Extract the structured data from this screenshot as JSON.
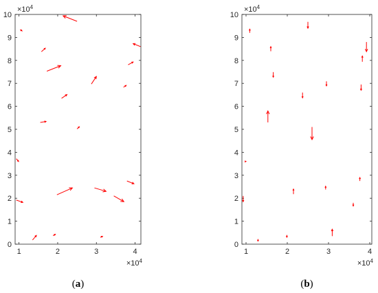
{
  "chart_data": [
    {
      "type": "quiver",
      "caption_letter": "a",
      "xlim": [
        0.9,
        4.15
      ],
      "ylim": [
        0,
        10
      ],
      "xticks": [
        1,
        2,
        3,
        4
      ],
      "yticks": [
        0,
        1,
        2,
        3,
        4,
        5,
        6,
        7,
        8,
        9,
        10
      ],
      "x_multiplier": "×10",
      "x_exponent": "4",
      "y_multiplier": "×10",
      "y_exponent": "4",
      "color": "#ff0000",
      "vectors": [
        {
          "x": 1.35,
          "y": 0.18,
          "u": 0.1,
          "v": 0.2
        },
        {
          "x": 1.88,
          "y": 0.37,
          "u": 0.06,
          "v": 0.06
        },
        {
          "x": 1.09,
          "y": 9.27,
          "u": -0.05,
          "v": 0.06
        },
        {
          "x": 2.5,
          "y": 9.7,
          "u": -0.36,
          "v": 0.24
        },
        {
          "x": 1.58,
          "y": 8.38,
          "u": 0.1,
          "v": 0.15
        },
        {
          "x": 1.72,
          "y": 7.53,
          "u": 0.36,
          "v": 0.24
        },
        {
          "x": 1.55,
          "y": 5.3,
          "u": 0.15,
          "v": 0.04
        },
        {
          "x": 2.1,
          "y": 6.35,
          "u": 0.14,
          "v": 0.16
        },
        {
          "x": 2.5,
          "y": 5.02,
          "u": 0.06,
          "v": 0.09
        },
        {
          "x": 2.87,
          "y": 6.97,
          "u": 0.13,
          "v": 0.33
        },
        {
          "x": 3.7,
          "y": 6.83,
          "u": 0.07,
          "v": 0.08
        },
        {
          "x": 3.82,
          "y": 7.81,
          "u": 0.13,
          "v": 0.12
        },
        {
          "x": 4.14,
          "y": 8.6,
          "u": -0.19,
          "v": 0.13
        },
        {
          "x": 0.93,
          "y": 3.72,
          "u": 0.06,
          "v": -0.12
        },
        {
          "x": 0.93,
          "y": 1.92,
          "u": 0.17,
          "v": -0.1
        },
        {
          "x": 1.98,
          "y": 2.15,
          "u": 0.4,
          "v": 0.3
        },
        {
          "x": 2.95,
          "y": 2.45,
          "u": 0.3,
          "v": -0.15
        },
        {
          "x": 3.45,
          "y": 2.1,
          "u": 0.26,
          "v": -0.25
        },
        {
          "x": 3.79,
          "y": 2.75,
          "u": 0.18,
          "v": -0.12
        },
        {
          "x": 3.1,
          "y": 0.3,
          "u": 0.06,
          "v": 0.04
        }
      ]
    },
    {
      "type": "quiver",
      "caption_letter": "b",
      "xlim": [
        0.9,
        4.05
      ],
      "ylim": [
        0,
        10
      ],
      "xticks": [
        1,
        2,
        3,
        4
      ],
      "yticks": [
        0,
        1,
        2,
        3,
        4,
        5,
        6,
        7,
        8,
        9,
        10
      ],
      "x_multiplier": "×10",
      "x_exponent": "4",
      "y_multiplier": "×10",
      "y_exponent": "4",
      "color": "#ff0000",
      "vectors": [
        {
          "x": 1.09,
          "y": 9.2,
          "u": 0.0,
          "v": 0.16
        },
        {
          "x": 2.5,
          "y": 9.68,
          "u": 0.0,
          "v": -0.28
        },
        {
          "x": 1.6,
          "y": 8.4,
          "u": 0.0,
          "v": 0.2
        },
        {
          "x": 1.66,
          "y": 7.49,
          "u": 0.0,
          "v": -0.22
        },
        {
          "x": 2.37,
          "y": 6.6,
          "u": 0.0,
          "v": -0.23
        },
        {
          "x": 2.95,
          "y": 7.09,
          "u": 0.0,
          "v": -0.2
        },
        {
          "x": 3.92,
          "y": 8.8,
          "u": 0.0,
          "v": -0.42
        },
        {
          "x": 3.82,
          "y": 7.94,
          "u": 0.0,
          "v": 0.25
        },
        {
          "x": 3.79,
          "y": 6.95,
          "u": 0.0,
          "v": -0.25
        },
        {
          "x": 1.53,
          "y": 5.3,
          "u": 0.0,
          "v": 0.5
        },
        {
          "x": 2.6,
          "y": 5.1,
          "u": 0.0,
          "v": -0.55
        },
        {
          "x": 0.99,
          "y": 3.6,
          "u": 0.01,
          "v": 0.0
        },
        {
          "x": 0.93,
          "y": 2.1,
          "u": 0.0,
          "v": -0.25
        },
        {
          "x": 2.15,
          "y": 2.18,
          "u": 0.0,
          "v": 0.22
        },
        {
          "x": 2.93,
          "y": 2.38,
          "u": 0.0,
          "v": 0.14
        },
        {
          "x": 3.76,
          "y": 2.75,
          "u": 0.0,
          "v": 0.15
        },
        {
          "x": 3.6,
          "y": 1.8,
          "u": 0.0,
          "v": -0.14
        },
        {
          "x": 1.99,
          "y": 0.4,
          "u": 0.0,
          "v": -0.1
        },
        {
          "x": 1.29,
          "y": 0.12,
          "u": 0.0,
          "v": 0.08
        },
        {
          "x": 3.09,
          "y": 0.35,
          "u": 0.0,
          "v": 0.3
        }
      ]
    }
  ]
}
